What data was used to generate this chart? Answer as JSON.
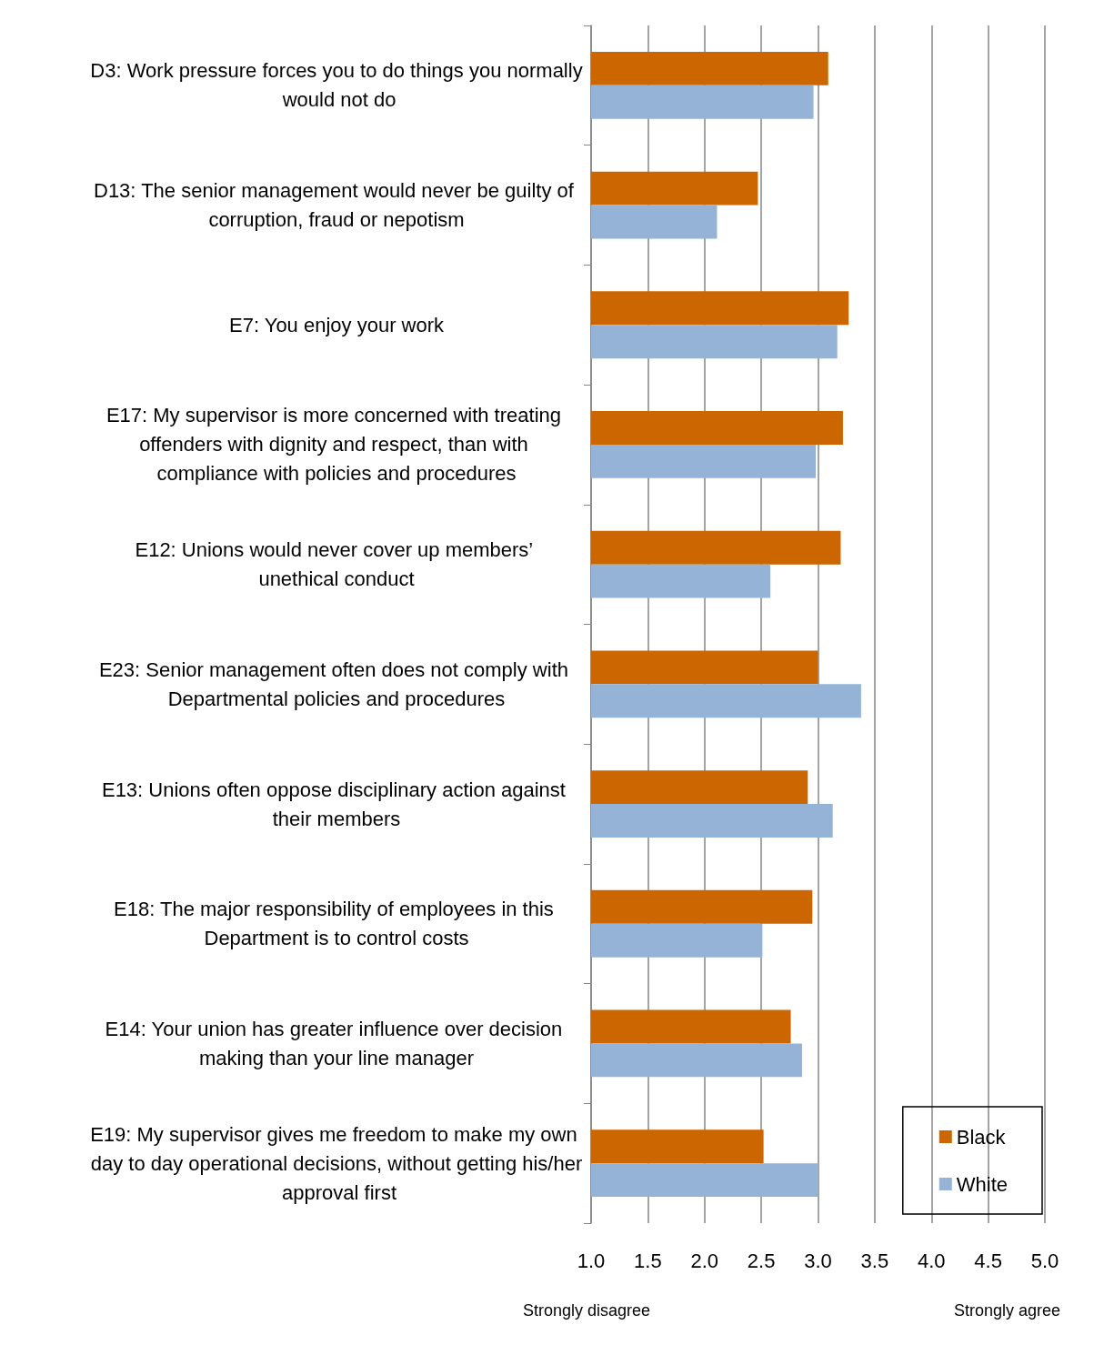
{
  "chart_data": {
    "type": "bar",
    "orientation": "horizontal",
    "categories": [
      "D3: Work pressure forces you to do things you normally would not do",
      "D13: The senior management would never be guilty of corruption, fraud or nepotism",
      "E7: You enjoy your work",
      "E17: My supervisor is more concerned with treating offenders with dignity and respect, than with compliance with policies and procedures",
      "E12: Unions would never cover up members’ unethical conduct",
      "E23: Senior management often does not comply with Departmental policies and procedures",
      "E13: Unions often oppose disciplinary action against their members",
      "E18: The major responsibility of employees in this Department is to control costs",
      "E14: Your union has greater influence over decision making than your line manager",
      "E19: My supervisor gives me freedom to make my own day to day operational decisions, without getting his/her approval first"
    ],
    "series": [
      {
        "name": "Black",
        "color": "#cc6600",
        "values": [
          3.09,
          2.47,
          3.27,
          3.22,
          3.2,
          3.0,
          2.91,
          2.95,
          2.76,
          2.52
        ]
      },
      {
        "name": "White",
        "color": "#95b3d7",
        "values": [
          2.96,
          2.11,
          3.17,
          2.98,
          2.58,
          3.38,
          3.13,
          2.51,
          2.86,
          3.0
        ]
      }
    ],
    "xlim": [
      1,
      5
    ],
    "xticks": [
      {
        "value": 1,
        "label": "1.0"
      },
      {
        "value": 1.5,
        "label": "1.5"
      },
      {
        "value": 2,
        "label": "2.0"
      },
      {
        "value": 2.5,
        "label": "2.5"
      },
      {
        "value": 3,
        "label": "3.0"
      },
      {
        "value": 3.5,
        "label": "3.5"
      },
      {
        "value": 4,
        "label": "4.0"
      },
      {
        "value": 4.5,
        "label": "4.5"
      },
      {
        "value": 5,
        "label": "5.0"
      }
    ],
    "grid": "x",
    "legend": "bottom right",
    "annotations": [
      "Strongly disagree",
      "Strongly agree"
    ]
  }
}
